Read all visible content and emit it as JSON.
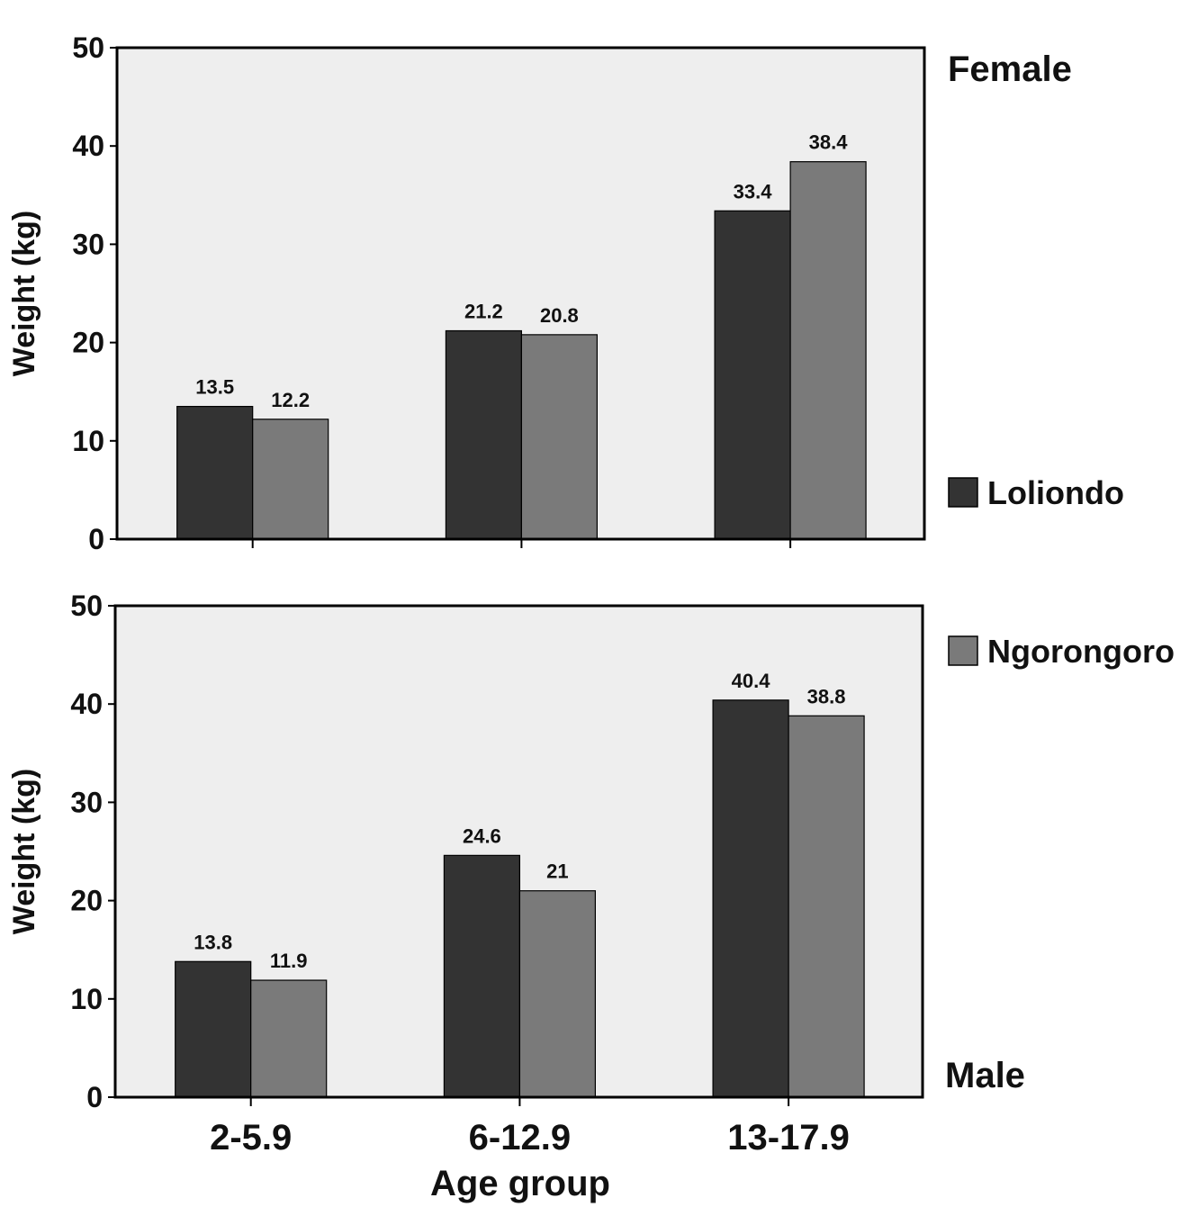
{
  "chart_data": {
    "type": "bar",
    "colors": {
      "Loliondo": "#333333",
      "Ngorongoro": "#7a7a7a",
      "plot_background": "#eeeeee"
    },
    "legend": {
      "placement": "right",
      "entries": [
        "Loliondo",
        "Ngorongoro"
      ]
    },
    "xlabel": "Age group",
    "categories": [
      "2-5.9",
      "6-12.9",
      "13-17.9"
    ],
    "panels": [
      {
        "panel_label": "Female",
        "ylabel": "Weight (kg)",
        "ylim": [
          0,
          50
        ],
        "yticks": [
          0,
          10,
          20,
          30,
          40,
          50
        ],
        "series": [
          {
            "name": "Loliondo",
            "values": [
              13.5,
              21.2,
              33.4
            ],
            "labels": [
              "13.5",
              "21.2",
              "33.4"
            ]
          },
          {
            "name": "Ngorongoro",
            "values": [
              12.2,
              20.8,
              38.4
            ],
            "labels": [
              "12.2",
              "20.8",
              "38.4"
            ]
          }
        ]
      },
      {
        "panel_label": "Male",
        "ylabel": "Weight (kg)",
        "ylim": [
          0,
          50
        ],
        "yticks": [
          0,
          10,
          20,
          30,
          40,
          50
        ],
        "series": [
          {
            "name": "Loliondo",
            "values": [
              13.8,
              24.6,
              40.4
            ],
            "labels": [
              "13.8",
              "24.6",
              "40.4"
            ]
          },
          {
            "name": "Ngorongoro",
            "values": [
              11.9,
              21,
              38.8
            ],
            "labels": [
              "11.9",
              "21",
              "38.8"
            ]
          }
        ]
      }
    ]
  }
}
